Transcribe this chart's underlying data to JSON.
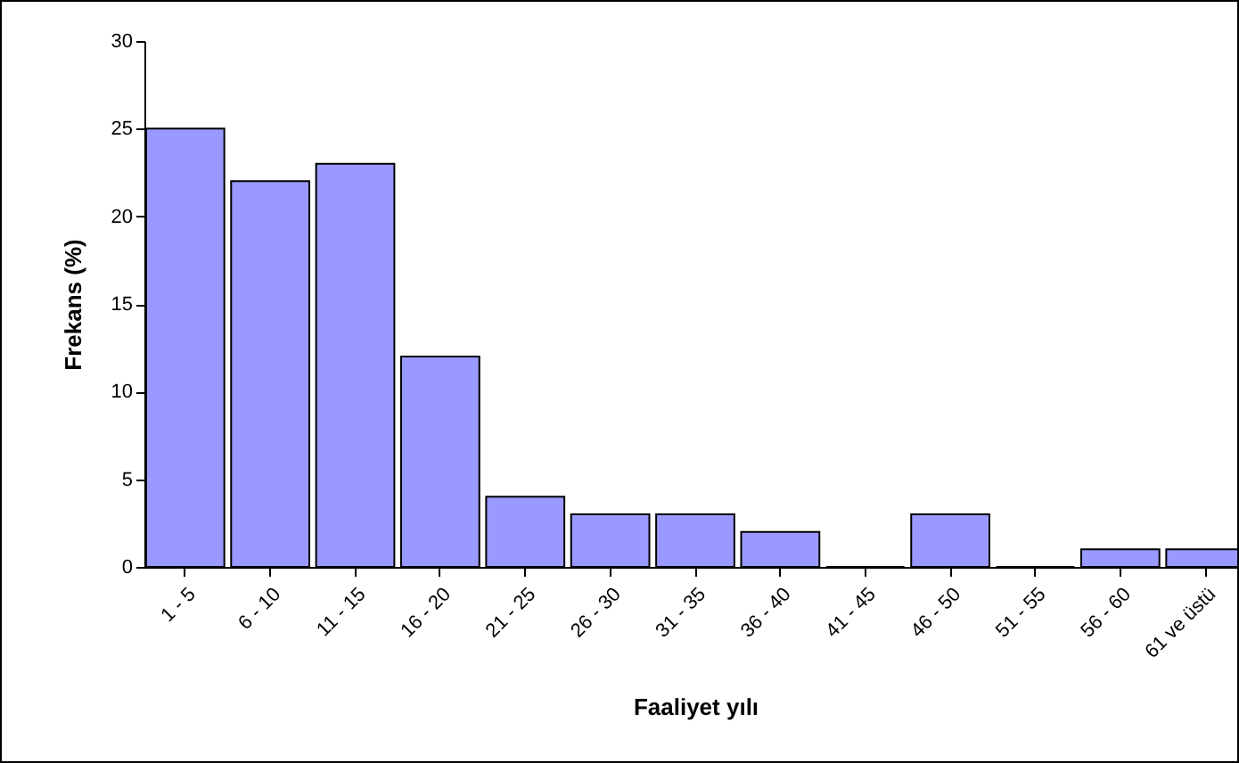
{
  "chart_data": {
    "type": "bar",
    "xlabel": "Faaliyet yılı",
    "ylabel": "Frekans (%)",
    "categories": [
      "1 - 5",
      "6 - 10",
      "11 - 15",
      "16 - 20",
      "21 - 25",
      "26 - 30",
      "31 - 35",
      "36 - 40",
      "41 - 45",
      "46 - 50",
      "51 - 55",
      "56 - 60",
      "61 ve üstü"
    ],
    "values": [
      25,
      22,
      23,
      12,
      4,
      3,
      3,
      2,
      0,
      3,
      0,
      1,
      1
    ],
    "color": "#9999ff",
    "ylim": [
      0,
      30
    ],
    "yticks": [
      0,
      5,
      10,
      15,
      20,
      25,
      30
    ],
    "grid": false
  }
}
